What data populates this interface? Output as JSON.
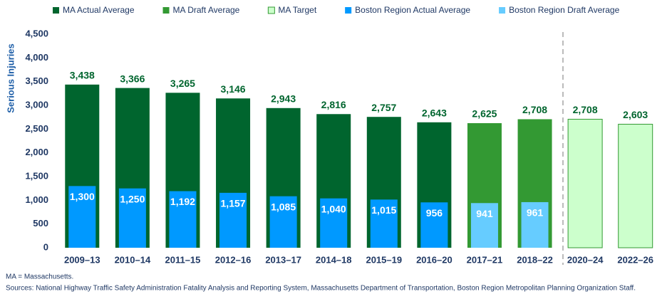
{
  "chart_data": {
    "type": "bar",
    "y_label": "Serious Injuries",
    "categories": [
      "2009–13",
      "2010–14",
      "2011–15",
      "2012–16",
      "2013–17",
      "2014–18",
      "2015–19",
      "2016–20",
      "2017–21",
      "2018–22",
      "2020–24",
      "2022–26"
    ],
    "series": [
      {
        "name": "MA Actual Average",
        "color": "#00652e",
        "values": [
          3438,
          3366,
          3265,
          3146,
          2943,
          2816,
          2757,
          2643,
          null,
          null,
          null,
          null
        ],
        "value_labels": [
          "3,438",
          "3,366",
          "3,265",
          "3,146",
          "2,943",
          "2,816",
          "2,757",
          "2,643",
          null,
          null,
          null,
          null
        ]
      },
      {
        "name": "MA Draft Average",
        "color": "#339933",
        "values": [
          null,
          null,
          null,
          null,
          null,
          null,
          null,
          null,
          2625,
          2708,
          null,
          null
        ],
        "value_labels": [
          null,
          null,
          null,
          null,
          null,
          null,
          null,
          null,
          "2,625",
          "2,708",
          null,
          null
        ]
      },
      {
        "name": "MA Target",
        "color": "#ccffcc",
        "values": [
          null,
          null,
          null,
          null,
          null,
          null,
          null,
          null,
          null,
          null,
          2708,
          2603
        ],
        "value_labels": [
          null,
          null,
          null,
          null,
          null,
          null,
          null,
          null,
          null,
          null,
          "2,708",
          "2,603"
        ]
      },
      {
        "name": "Boston Region Actual Average",
        "color": "#0099ff",
        "values": [
          1300,
          1250,
          1192,
          1157,
          1085,
          1040,
          1015,
          956,
          null,
          null,
          null,
          null
        ],
        "value_labels": [
          "1,300",
          "1,250",
          "1,192",
          "1,157",
          "1,085",
          "1,040",
          "1,015",
          null,
          null,
          null,
          null,
          null
        ]
      },
      {
        "name": "Boston Region Draft Average",
        "color": "#66ccff",
        "values": [
          null,
          null,
          null,
          null,
          null,
          null,
          null,
          null,
          941,
          961,
          null,
          null
        ]
      }
    ],
    "ylim": [
      0,
      4500
    ],
    "yticks": [
      0,
      500,
      {
        "value": 1000,
        "label": "1,000"
      },
      {
        "value": 1500,
        "label": "1,500"
      },
      {
        "value": 2000,
        "label": "2,000"
      },
      {
        "value": 2500,
        "label": "2,500"
      },
      {
        "value": 3000,
        "label": "3,000"
      },
      {
        "value": 3500,
        "label": "3,500"
      },
      {
        "value": 4000,
        "label": "4,000"
      },
      {
        "value": 4500,
        "label": "4,500"
      }
    ],
    "grid": false,
    "legend": "top",
    "notes": [
      "MA = Massachusetts.",
      "Sources: National Highway Traffic Safety Administration Fatality Analysis and Reporting System, Massachusetts Department of Transportation, Boston Region Metropolitan Planning Organization Staff."
    ]
  }
}
